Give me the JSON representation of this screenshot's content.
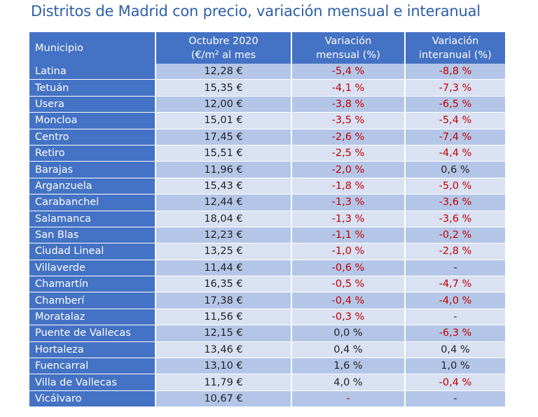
{
  "title": "Distritos de Madrid con precio, variación mensual e interanual",
  "headers": {
    "municipio": "Municipio",
    "precio_line1": "Octubre 2020",
    "precio_line2": "(€/m² al mes",
    "mensual_line1": "Variación",
    "mensual_line2": "mensual (%)",
    "interanual_line1": "Variación",
    "interanual_line2": "interanual (%)"
  },
  "colors": {
    "header_bg": "#4472c4",
    "row_light": "#d9e1f2",
    "row_dark": "#b4c6e7",
    "negative": "#c00000",
    "title": "#2c5ea8"
  },
  "rows": [
    {
      "municipio": "Latina",
      "precio": "12,28 €",
      "mensual": "-5,4 %",
      "interanual": "-8,8 %"
    },
    {
      "municipio": "Tetuán",
      "precio": "15,35 €",
      "mensual": "-4,1 %",
      "interanual": "-7,3 %"
    },
    {
      "municipio": "Usera",
      "precio": "12,00 €",
      "mensual": "-3,8 %",
      "interanual": "-6,5 %"
    },
    {
      "municipio": "Moncloa",
      "precio": "15,01 €",
      "mensual": "-3,5 %",
      "interanual": "-5,4 %"
    },
    {
      "municipio": "Centro",
      "precio": "17,45 €",
      "mensual": "-2,6 %",
      "interanual": "-7,4 %"
    },
    {
      "municipio": "Retiro",
      "precio": "15,51 €",
      "mensual": "-2,5 %",
      "interanual": "-4,4 %"
    },
    {
      "municipio": "Barajas",
      "precio": "11,96 €",
      "mensual": "-2,0 %",
      "interanual": "0,6 %"
    },
    {
      "municipio": "Arganzuela",
      "precio": "15,43 €",
      "mensual": "-1,8 %",
      "interanual": "-5,0 %"
    },
    {
      "municipio": "Carabanchel",
      "precio": "12,44 €",
      "mensual": "-1,3 %",
      "interanual": "-3,6 %"
    },
    {
      "municipio": "Salamanca",
      "precio": "18,04 €",
      "mensual": "-1,3 %",
      "interanual": "-3,6 %"
    },
    {
      "municipio": "San Blas",
      "precio": "12,23 €",
      "mensual": "-1,1 %",
      "interanual": "-0,2 %"
    },
    {
      "municipio": "Ciudad Lineal",
      "precio": "13,25 €",
      "mensual": "-1,0 %",
      "interanual": "-2,8 %"
    },
    {
      "municipio": "Villaverde",
      "precio": "11,44 €",
      "mensual": "-0,6 %",
      "interanual": "-"
    },
    {
      "municipio": "Chamartín",
      "precio": "16,35 €",
      "mensual": "-0,5 %",
      "interanual": "-4,7 %"
    },
    {
      "municipio": "Chamberí",
      "precio": "17,38 €",
      "mensual": "-0,4 %",
      "interanual": "-4,0 %"
    },
    {
      "municipio": "Moratalaz",
      "precio": "11,56 €",
      "mensual": "-0,3 %",
      "interanual": "-"
    },
    {
      "municipio": "Puente de Vallecas",
      "precio": "12,15 €",
      "mensual": "0,0 %",
      "interanual": "-6,3 %"
    },
    {
      "municipio": "Hortaleza",
      "precio": "13,46 €",
      "mensual": "0,4 %",
      "interanual": "0,4 %"
    },
    {
      "municipio": "Fuencarral",
      "precio": "13,10 €",
      "mensual": "1,6 %",
      "interanual": "1,0 %"
    },
    {
      "municipio": "Villa de Vallecas",
      "precio": "11,79 €",
      "mensual": "4,0 %",
      "interanual": "-0,4 %"
    },
    {
      "municipio": "Vicálvaro",
      "precio": "10,67 €",
      "mensual": "-",
      "interanual": "-"
    }
  ]
}
